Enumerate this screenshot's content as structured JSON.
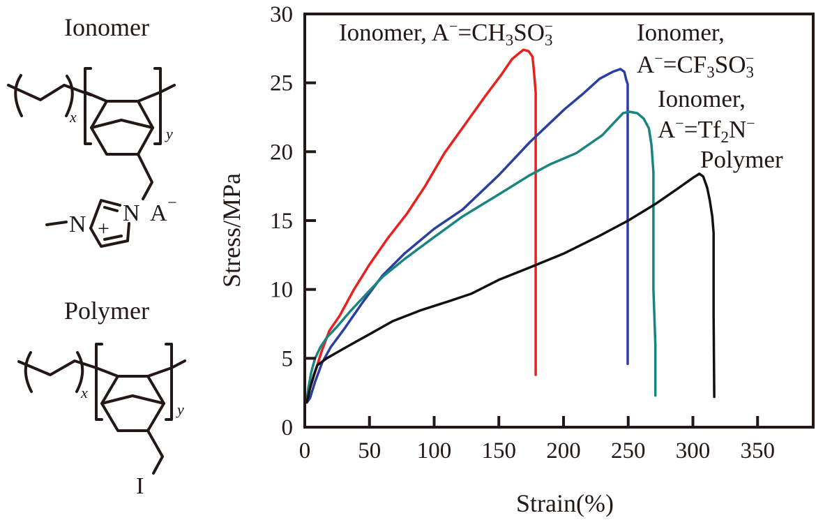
{
  "structures": {
    "ionomer": {
      "title": "Ionomer",
      "subscript_x": "x",
      "subscript_y": "y",
      "atoms": {
        "n_left": "N",
        "n_right": "N",
        "plus": "+",
        "anion": "A",
        "anion_sup": "−",
        "methyl_dash": "−"
      }
    },
    "polymer": {
      "title": "Polymer",
      "subscript_x": "x",
      "subscript_y": "y",
      "atoms": {
        "iodine": "I"
      }
    }
  },
  "chart_data": {
    "type": "line",
    "title": "",
    "xlabel": "Strain(%)",
    "ylabel": "Stress/MPa",
    "xlim": [
      0,
      393
    ],
    "ylim": [
      0,
      30
    ],
    "grid": false,
    "x_ticks": [
      0,
      50,
      100,
      150,
      200,
      250,
      300,
      350
    ],
    "y_ticks": [
      0,
      5,
      10,
      15,
      20,
      25,
      30
    ],
    "legend": "inline annotations near curve ends (top-right)",
    "series": [
      {
        "name": "Ionomer, A−=CH3SO3−",
        "color": "#e8201e",
        "label_parts": [
          "Ionomer, A",
          "−",
          "=CH",
          "3",
          "SO",
          "3",
          "−"
        ],
        "points": [
          [
            1.6,
            2.0
          ],
          [
            4,
            2.8
          ],
          [
            8,
            4.0
          ],
          [
            13,
            5.5
          ],
          [
            19,
            7.0
          ],
          [
            27,
            8.1
          ],
          [
            38,
            10.0
          ],
          [
            50,
            11.8
          ],
          [
            64,
            13.7
          ],
          [
            79,
            15.5
          ],
          [
            93,
            17.5
          ],
          [
            108,
            19.9
          ],
          [
            124,
            22.0
          ],
          [
            140,
            24.1
          ],
          [
            152,
            25.6
          ],
          [
            160,
            26.7
          ],
          [
            165,
            27.1
          ],
          [
            169,
            27.4
          ],
          [
            173,
            27.3
          ],
          [
            176,
            26.9
          ],
          [
            177,
            26.0
          ],
          [
            178.5,
            24.3
          ],
          [
            178.5,
            15.0
          ],
          [
            178.5,
            3.8
          ]
        ]
      },
      {
        "name": "Ionomer, A−=CF3SO3−",
        "color": "#2a3fa0",
        "label_parts": [
          "Ionomer,",
          "A",
          "−",
          "=CF",
          "3",
          "SO",
          "3",
          "−"
        ],
        "points": [
          [
            1.6,
            1.8
          ],
          [
            4,
            2.1
          ],
          [
            8,
            3.3
          ],
          [
            13.5,
            4.7
          ],
          [
            20,
            5.8
          ],
          [
            31,
            7.2
          ],
          [
            45,
            9.1
          ],
          [
            60,
            11.0
          ],
          [
            77,
            12.6
          ],
          [
            100,
            14.4
          ],
          [
            122,
            15.8
          ],
          [
            150,
            18.3
          ],
          [
            174,
            20.7
          ],
          [
            201,
            23.1
          ],
          [
            215,
            24.2
          ],
          [
            228,
            25.3
          ],
          [
            238,
            25.8
          ],
          [
            244,
            26.0
          ],
          [
            247,
            25.8
          ],
          [
            248.5,
            25.2
          ],
          [
            249.6,
            24.9
          ],
          [
            249.6,
            15.0
          ],
          [
            249.6,
            4.6
          ]
        ]
      },
      {
        "name": "Ionomer, A−=Tf2N−",
        "color": "#1a8580",
        "label_parts": [
          "Ionomer,",
          "A",
          "−",
          "=Tf",
          "2",
          "N",
          "−"
        ],
        "points": [
          [
            1.6,
            2.0
          ],
          [
            2.7,
            2.8
          ],
          [
            5,
            4.0
          ],
          [
            8,
            5.0
          ],
          [
            12,
            5.8
          ],
          [
            17,
            6.5
          ],
          [
            25,
            7.3
          ],
          [
            35,
            8.4
          ],
          [
            50,
            9.9
          ],
          [
            60,
            10.9
          ],
          [
            77,
            12.2
          ],
          [
            100,
            13.8
          ],
          [
            122,
            15.3
          ],
          [
            150,
            16.9
          ],
          [
            174,
            18.3
          ],
          [
            190,
            19.1
          ],
          [
            210,
            19.9
          ],
          [
            230,
            21.2
          ],
          [
            246,
            22.8
          ],
          [
            251,
            22.9
          ],
          [
            257,
            22.8
          ],
          [
            262,
            22.4
          ],
          [
            266,
            21.7
          ],
          [
            268,
            20.5
          ],
          [
            269.5,
            18.5
          ],
          [
            269.5,
            10.0
          ],
          [
            271,
            6.0
          ],
          [
            271,
            2.3
          ]
        ]
      },
      {
        "name": "Polymer",
        "color": "#111111",
        "label_parts": [
          "Polymer"
        ],
        "points": [
          [
            1.6,
            1.8
          ],
          [
            4,
            2.8
          ],
          [
            7,
            3.8
          ],
          [
            9.7,
            4.5
          ],
          [
            17,
            5.0
          ],
          [
            30,
            5.7
          ],
          [
            51,
            6.8
          ],
          [
            68,
            7.7
          ],
          [
            90,
            8.5
          ],
          [
            110,
            9.1
          ],
          [
            129,
            9.7
          ],
          [
            150,
            10.7
          ],
          [
            174,
            11.6
          ],
          [
            200,
            12.6
          ],
          [
            228,
            13.9
          ],
          [
            250,
            15.0
          ],
          [
            271,
            16.2
          ],
          [
            288,
            17.3
          ],
          [
            300,
            18.1
          ],
          [
            305,
            18.4
          ],
          [
            308,
            18.2
          ],
          [
            311,
            17.4
          ],
          [
            313,
            16.5
          ],
          [
            315,
            15.3
          ],
          [
            316,
            14.1
          ],
          [
            316,
            8.0
          ],
          [
            316.5,
            2.2
          ]
        ]
      }
    ]
  }
}
